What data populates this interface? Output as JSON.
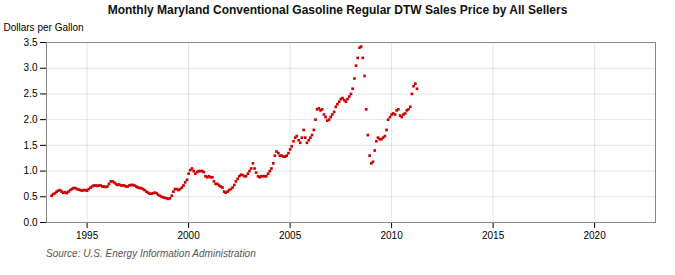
{
  "chart_data": {
    "type": "scatter",
    "title": "Monthly Maryland Conventional Gasoline Regular DTW Sales Price by All Sellers",
    "ylabel": "Dollars per Gallon",
    "annotations": [
      "Source: U.S. Energy Information Administration"
    ],
    "color": "#CC0000",
    "marker": "square",
    "grid": true,
    "xlim": [
      1993.0,
      2023.0
    ],
    "ylim": [
      0.0,
      3.5
    ],
    "xticks": [
      1995,
      2000,
      2005,
      2010,
      2015,
      2020
    ],
    "yticks": [
      {
        "value": 0.0,
        "label": "0.0"
      },
      0.5,
      {
        "value": 1.0,
        "label": "1.0"
      },
      1.5,
      {
        "value": 2.0,
        "label": "2.0"
      },
      2.5,
      {
        "value": 3.0,
        "label": "3.0"
      },
      3.5
    ],
    "x": [
      1993.25,
      1993.33,
      1993.42,
      1993.5,
      1993.58,
      1993.67,
      1993.75,
      1993.83,
      1993.92,
      1994.0,
      1994.08,
      1994.17,
      1994.25,
      1994.33,
      1994.42,
      1994.5,
      1994.58,
      1994.67,
      1994.75,
      1994.83,
      1994.92,
      1995.0,
      1995.08,
      1995.17,
      1995.25,
      1995.33,
      1995.42,
      1995.5,
      1995.58,
      1995.67,
      1995.75,
      1995.83,
      1995.92,
      1996.0,
      1996.08,
      1996.17,
      1996.25,
      1996.33,
      1996.42,
      1996.5,
      1996.58,
      1996.67,
      1996.75,
      1996.83,
      1996.92,
      1997.0,
      1997.08,
      1997.17,
      1997.25,
      1997.33,
      1997.42,
      1997.5,
      1997.58,
      1997.67,
      1997.75,
      1997.83,
      1997.92,
      1998.0,
      1998.08,
      1998.17,
      1998.25,
      1998.33,
      1998.42,
      1998.5,
      1998.58,
      1998.67,
      1998.75,
      1998.83,
      1998.92,
      1999.0,
      1999.08,
      1999.17,
      1999.25,
      1999.33,
      1999.42,
      1999.5,
      1999.58,
      1999.67,
      1999.75,
      1999.83,
      1999.92,
      2000.0,
      2000.08,
      2000.17,
      2000.25,
      2000.33,
      2000.42,
      2000.5,
      2000.58,
      2000.67,
      2000.75,
      2000.83,
      2000.92,
      2001.0,
      2001.08,
      2001.17,
      2001.25,
      2001.33,
      2001.42,
      2001.5,
      2001.58,
      2001.67,
      2001.75,
      2001.83,
      2001.92,
      2002.0,
      2002.08,
      2002.17,
      2002.25,
      2002.33,
      2002.42,
      2002.5,
      2002.58,
      2002.67,
      2002.75,
      2002.83,
      2002.92,
      2003.0,
      2003.08,
      2003.17,
      2003.25,
      2003.33,
      2003.42,
      2003.5,
      2003.58,
      2003.67,
      2003.75,
      2003.83,
      2003.92,
      2004.0,
      2004.08,
      2004.17,
      2004.25,
      2004.33,
      2004.42,
      2004.5,
      2004.58,
      2004.67,
      2004.75,
      2004.83,
      2004.92,
      2005.0,
      2005.08,
      2005.17,
      2005.25,
      2005.33,
      2005.42,
      2005.5,
      2005.58,
      2005.67,
      2005.75,
      2005.83,
      2005.92,
      2006.0,
      2006.08,
      2006.17,
      2006.25,
      2006.33,
      2006.42,
      2006.5,
      2006.58,
      2006.67,
      2006.75,
      2006.83,
      2006.92,
      2007.0,
      2007.08,
      2007.17,
      2007.25,
      2007.33,
      2007.42,
      2007.5,
      2007.58,
      2007.67,
      2007.75,
      2007.83,
      2007.92,
      2008.0,
      2008.08,
      2008.17,
      2008.25,
      2008.33,
      2008.42,
      2008.5,
      2008.58,
      2008.67,
      2008.75,
      2008.83,
      2008.92,
      2009.0,
      2009.08,
      2009.17,
      2009.25,
      2009.33,
      2009.42,
      2009.5,
      2009.58,
      2009.67,
      2009.75,
      2009.83,
      2009.92,
      2010.0,
      2010.08,
      2010.17,
      2010.25,
      2010.33,
      2010.42,
      2010.5,
      2010.58,
      2010.67,
      2010.75,
      2010.83,
      2010.92,
      2011.0,
      2011.08,
      2011.17,
      2011.25
    ],
    "values": [
      0.52,
      0.55,
      0.57,
      0.6,
      0.62,
      0.63,
      0.6,
      0.58,
      0.59,
      0.57,
      0.6,
      0.63,
      0.65,
      0.67,
      0.67,
      0.65,
      0.64,
      0.63,
      0.62,
      0.63,
      0.63,
      0.62,
      0.65,
      0.68,
      0.7,
      0.72,
      0.72,
      0.71,
      0.72,
      0.72,
      0.7,
      0.7,
      0.69,
      0.7,
      0.75,
      0.8,
      0.8,
      0.78,
      0.75,
      0.73,
      0.74,
      0.72,
      0.72,
      0.72,
      0.7,
      0.7,
      0.72,
      0.73,
      0.73,
      0.72,
      0.7,
      0.68,
      0.67,
      0.67,
      0.65,
      0.63,
      0.6,
      0.58,
      0.56,
      0.56,
      0.57,
      0.58,
      0.57,
      0.54,
      0.52,
      0.5,
      0.49,
      0.48,
      0.47,
      0.46,
      0.47,
      0.52,
      0.6,
      0.65,
      0.65,
      0.63,
      0.65,
      0.68,
      0.72,
      0.78,
      0.83,
      0.95,
      1.02,
      1.05,
      1.0,
      0.95,
      0.98,
      1.0,
      1.0,
      1.0,
      0.98,
      0.9,
      0.88,
      0.9,
      0.88,
      0.88,
      0.8,
      0.75,
      0.75,
      0.72,
      0.7,
      0.68,
      0.6,
      0.58,
      0.6,
      0.63,
      0.65,
      0.68,
      0.73,
      0.8,
      0.85,
      0.9,
      0.93,
      0.92,
      0.9,
      0.9,
      0.95,
      1.0,
      1.05,
      1.15,
      1.05,
      0.97,
      0.9,
      0.88,
      0.9,
      0.9,
      0.9,
      0.9,
      0.95,
      1.0,
      1.05,
      1.15,
      1.3,
      1.38,
      1.35,
      1.3,
      1.3,
      1.28,
      1.28,
      1.3,
      1.35,
      1.42,
      1.48,
      1.58,
      1.65,
      1.68,
      1.6,
      1.55,
      1.65,
      1.8,
      1.65,
      1.55,
      1.6,
      1.65,
      1.7,
      1.8,
      2.0,
      2.2,
      2.22,
      2.18,
      2.2,
      2.1,
      2.05,
      1.98,
      2.0,
      2.05,
      2.1,
      2.15,
      2.25,
      2.3,
      2.35,
      2.4,
      2.42,
      2.38,
      2.35,
      2.4,
      2.45,
      2.5,
      2.6,
      2.8,
      3.05,
      3.2,
      3.4,
      3.42,
      3.2,
      2.85,
      2.2,
      1.7,
      1.3,
      1.15,
      1.18,
      1.4,
      1.58,
      1.65,
      1.62,
      1.62,
      1.65,
      1.68,
      1.8,
      2.0,
      2.05,
      2.1,
      2.12,
      2.1,
      2.18,
      2.2,
      2.08,
      2.05,
      2.1,
      2.12,
      2.18,
      2.2,
      2.25,
      2.5,
      2.65,
      2.7,
      2.6
    ]
  }
}
